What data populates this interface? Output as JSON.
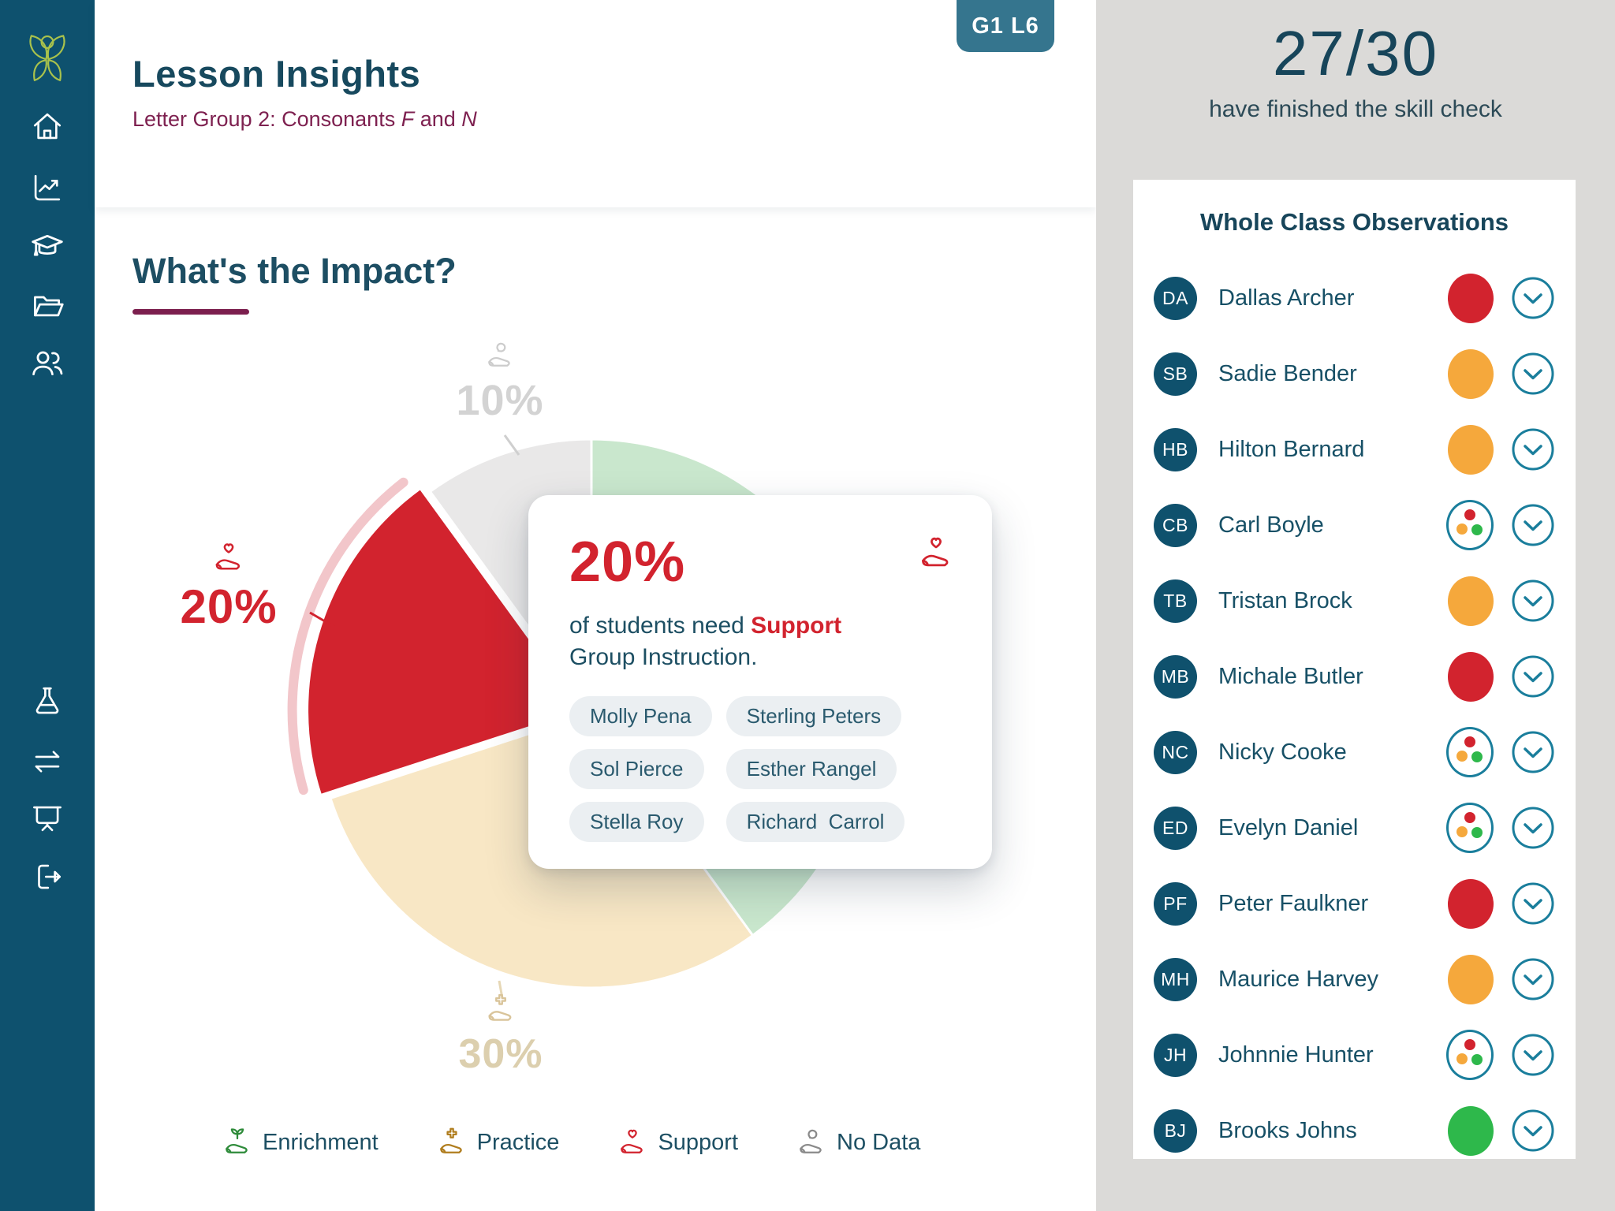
{
  "app": {
    "badge": "G1 L6"
  },
  "header": {
    "title": "Lesson Insights",
    "subtitle": {
      "prefix": "Letter Group 2: Consonants ",
      "italic1": "F",
      "mid": " and ",
      "italic2": "N"
    }
  },
  "section": {
    "heading": "What's the Impact?"
  },
  "chart_data": {
    "type": "pie",
    "title": "What's the Impact?",
    "unit": "percent of students",
    "order_clockwise_from_top": [
      "Enrichment",
      "Practice",
      "Support",
      "No Data"
    ],
    "slices": [
      {
        "label": "Enrichment",
        "value": 40,
        "color": "#c9e7cd",
        "display": "40%",
        "label_shown": false
      },
      {
        "label": "Practice",
        "value": 30,
        "color": "#f8e7c5",
        "display": "30%",
        "label_shown": true
      },
      {
        "label": "Support",
        "value": 20,
        "color": "#d2232e",
        "display": "20%",
        "label_shown": true,
        "highlighted": true
      },
      {
        "label": "No Data",
        "value": 10,
        "color": "#e9e8e8",
        "display": "10%",
        "label_shown": true
      }
    ],
    "legend_position": "bottom",
    "legend": [
      {
        "label": "Enrichment",
        "icon": "hand-sprout-icon",
        "color": "#2e8b3a"
      },
      {
        "label": "Practice",
        "icon": "hand-plus-icon",
        "color": "#b07d1e"
      },
      {
        "label": "Support",
        "icon": "hand-heart-icon",
        "color": "#d2232e"
      },
      {
        "label": "No Data",
        "icon": "hand-swirl-icon",
        "color": "#8a8a8a"
      }
    ]
  },
  "tooltip": {
    "percent": "20%",
    "icon": "hand-heart-icon",
    "text": {
      "pre": "of students need ",
      "highlight": "Support",
      "post": " Group Instruction."
    },
    "students": [
      "Molly Pena",
      "Sterling Peters",
      "Sol Pierce",
      "Esther Rangel",
      "Stella Roy",
      "Richard  Carrol"
    ]
  },
  "right_panel": {
    "completion": "27/30",
    "note": "have finished the skill check",
    "card_title": "Whole Class Observations",
    "students": [
      {
        "initials": "DA",
        "name": "Dallas Archer",
        "status": "red"
      },
      {
        "initials": "SB",
        "name": "Sadie Bender",
        "status": "orange"
      },
      {
        "initials": "HB",
        "name": "Hilton Bernard",
        "status": "orange"
      },
      {
        "initials": "CB",
        "name": "Carl Boyle",
        "status": "mixed"
      },
      {
        "initials": "TB",
        "name": "Tristan Brock",
        "status": "orange"
      },
      {
        "initials": "MB",
        "name": "Michale Butler",
        "status": "red"
      },
      {
        "initials": "NC",
        "name": "Nicky Cooke",
        "status": "mixed"
      },
      {
        "initials": "ED",
        "name": "Evelyn Daniel",
        "status": "mixed"
      },
      {
        "initials": "PF",
        "name": "Peter Faulkner",
        "status": "red"
      },
      {
        "initials": "MH",
        "name": "Maurice Harvey",
        "status": "orange"
      },
      {
        "initials": "JH",
        "name": "Johnnie Hunter",
        "status": "mixed"
      },
      {
        "initials": "BJ",
        "name": "Brooks Johns",
        "status": "green"
      }
    ]
  },
  "colors": {
    "sidebar": "#0e516e",
    "logo_green": "#a9c24c",
    "accent_teal": "#1a7e9c",
    "status_red": "#d2232e",
    "status_orange": "#f5a83c",
    "status_green": "#2eb84b",
    "support_ring": "#f2c6ca",
    "purple_accent": "#7c1f4e"
  }
}
